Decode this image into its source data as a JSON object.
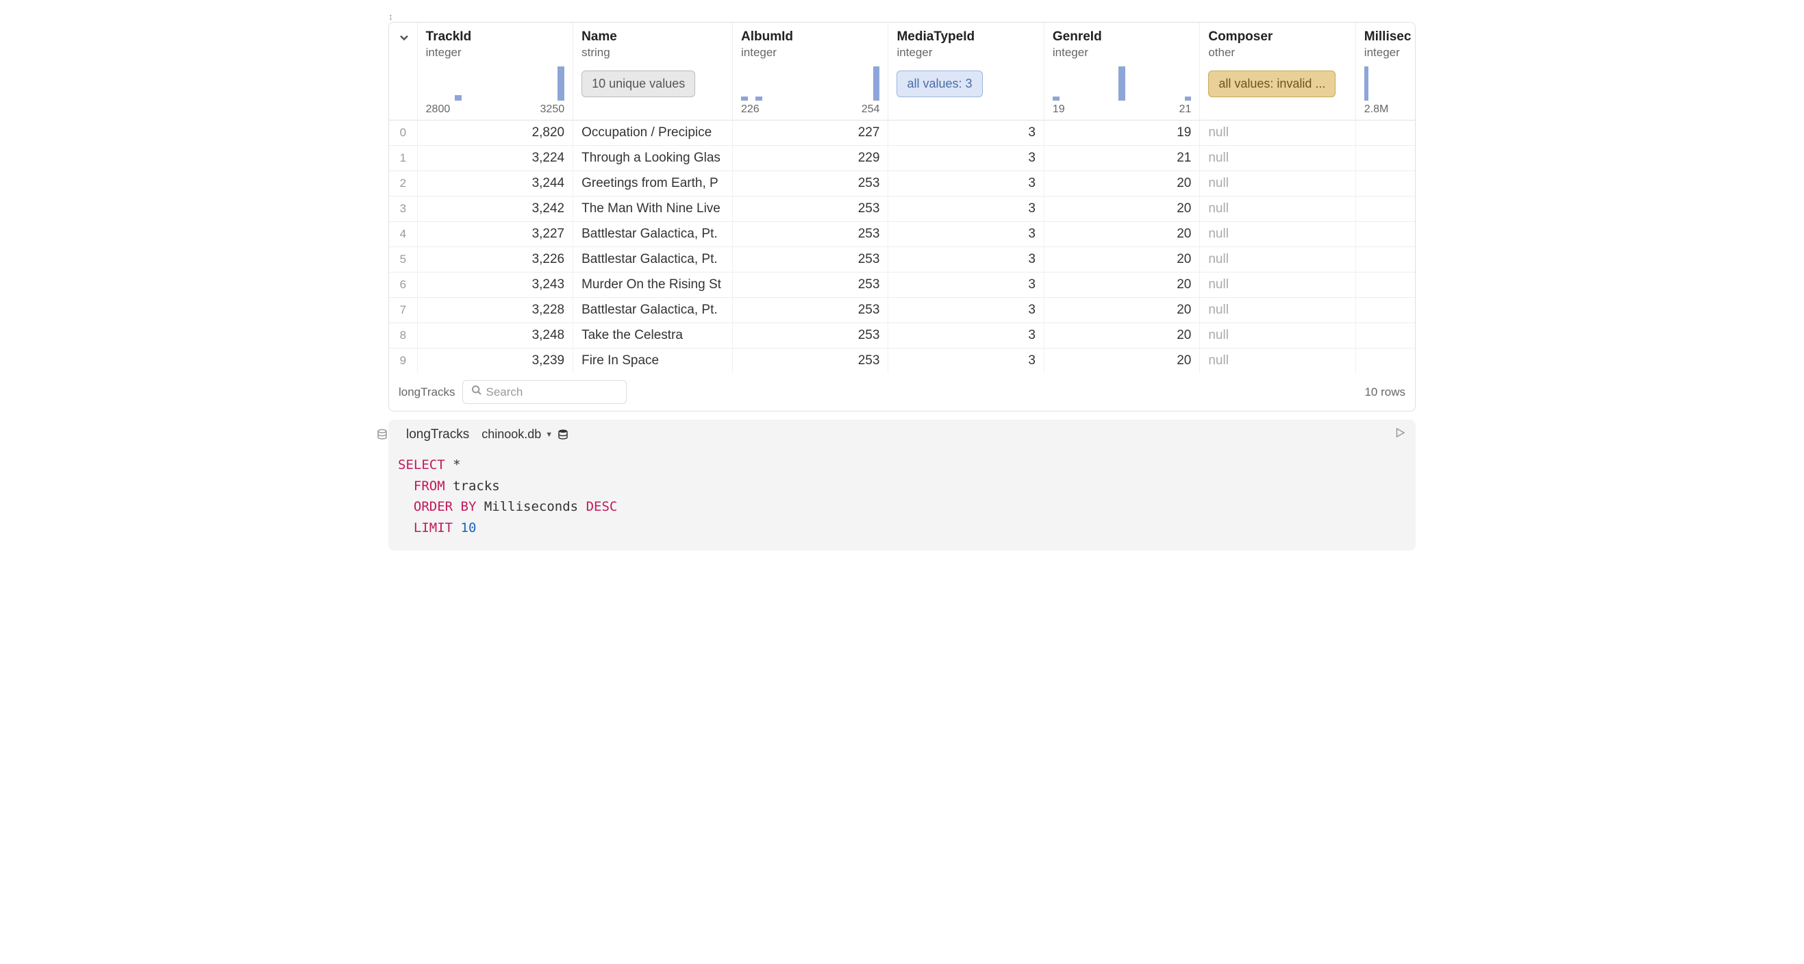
{
  "columns": [
    {
      "name": "TrackId",
      "type": "integer",
      "viz": "hist",
      "hist_bars": [
        0,
        0,
        0,
        0,
        8,
        0,
        0,
        0,
        0,
        0,
        0,
        0,
        0,
        0,
        0,
        0,
        0,
        0,
        48
      ],
      "min_label": "2800",
      "max_label": "3250"
    },
    {
      "name": "Name",
      "type": "string",
      "viz": "badge",
      "badge_label": "10 unique values",
      "badge_class": "badge-gray"
    },
    {
      "name": "AlbumId",
      "type": "integer",
      "viz": "hist",
      "hist_bars": [
        6,
        0,
        6,
        0,
        0,
        0,
        0,
        0,
        0,
        0,
        0,
        0,
        0,
        0,
        0,
        0,
        0,
        0,
        44
      ],
      "min_label": "226",
      "max_label": "254"
    },
    {
      "name": "MediaTypeId",
      "type": "integer",
      "viz": "badge",
      "badge_label": "all values: 3",
      "badge_class": "badge-blue"
    },
    {
      "name": "GenreId",
      "type": "integer",
      "viz": "hist",
      "hist_bars": [
        6,
        0,
        0,
        0,
        0,
        0,
        0,
        0,
        0,
        44,
        0,
        0,
        0,
        0,
        0,
        0,
        0,
        0,
        6
      ],
      "min_label": "19",
      "max_label": "21"
    },
    {
      "name": "Composer",
      "type": "other",
      "viz": "badge",
      "badge_label": "all values: invalid ...",
      "badge_class": "badge-amber"
    },
    {
      "name": "Millisec",
      "type": "integer",
      "viz": "hist",
      "hist_bars": [
        48,
        0,
        0,
        0,
        0,
        0,
        0,
        0,
        0
      ],
      "min_label": "2.8M",
      "max_label": ""
    }
  ],
  "rows": [
    {
      "idx": "0",
      "TrackId": "2,820",
      "Name": "Occupation / Precipice",
      "AlbumId": "227",
      "MediaTypeId": "3",
      "GenreId": "19",
      "Composer": "null",
      "Millisec": ""
    },
    {
      "idx": "1",
      "TrackId": "3,224",
      "Name": "Through a Looking Glas",
      "AlbumId": "229",
      "MediaTypeId": "3",
      "GenreId": "21",
      "Composer": "null",
      "Millisec": ""
    },
    {
      "idx": "2",
      "TrackId": "3,244",
      "Name": "Greetings from Earth, P",
      "AlbumId": "253",
      "MediaTypeId": "3",
      "GenreId": "20",
      "Composer": "null",
      "Millisec": ""
    },
    {
      "idx": "3",
      "TrackId": "3,242",
      "Name": "The Man With Nine Live",
      "AlbumId": "253",
      "MediaTypeId": "3",
      "GenreId": "20",
      "Composer": "null",
      "Millisec": ""
    },
    {
      "idx": "4",
      "TrackId": "3,227",
      "Name": "Battlestar Galactica, Pt.",
      "AlbumId": "253",
      "MediaTypeId": "3",
      "GenreId": "20",
      "Composer": "null",
      "Millisec": ""
    },
    {
      "idx": "5",
      "TrackId": "3,226",
      "Name": "Battlestar Galactica, Pt.",
      "AlbumId": "253",
      "MediaTypeId": "3",
      "GenreId": "20",
      "Composer": "null",
      "Millisec": ""
    },
    {
      "idx": "6",
      "TrackId": "3,243",
      "Name": "Murder On the Rising St",
      "AlbumId": "253",
      "MediaTypeId": "3",
      "GenreId": "20",
      "Composer": "null",
      "Millisec": ""
    },
    {
      "idx": "7",
      "TrackId": "3,228",
      "Name": "Battlestar Galactica, Pt.",
      "AlbumId": "253",
      "MediaTypeId": "3",
      "GenreId": "20",
      "Composer": "null",
      "Millisec": ""
    },
    {
      "idx": "8",
      "TrackId": "3,248",
      "Name": "Take the Celestra",
      "AlbumId": "253",
      "MediaTypeId": "3",
      "GenreId": "20",
      "Composer": "null",
      "Millisec": ""
    },
    {
      "idx": "9",
      "TrackId": "3,239",
      "Name": "Fire In Space",
      "AlbumId": "253",
      "MediaTypeId": "3",
      "GenreId": "20",
      "Composer": "null",
      "Millisec": ""
    }
  ],
  "footer": {
    "var_name": "longTracks",
    "search_placeholder": "Search",
    "row_count": "10 rows"
  },
  "sql": {
    "var_name": "longTracks",
    "db_name": "chinook.db",
    "code_tokens": [
      {
        "t": "SELECT",
        "c": "kw"
      },
      {
        "t": " *\n  "
      },
      {
        "t": "FROM",
        "c": "kw"
      },
      {
        "t": " tracks\n  "
      },
      {
        "t": "ORDER BY",
        "c": "kw"
      },
      {
        "t": " Milliseconds "
      },
      {
        "t": "DESC",
        "c": "kw"
      },
      {
        "t": "\n  "
      },
      {
        "t": "LIMIT",
        "c": "kw"
      },
      {
        "t": " "
      },
      {
        "t": "10",
        "c": "num"
      }
    ]
  },
  "colors": {
    "hist_bar": "#8ea5d8",
    "border": "#e0e0e0"
  }
}
